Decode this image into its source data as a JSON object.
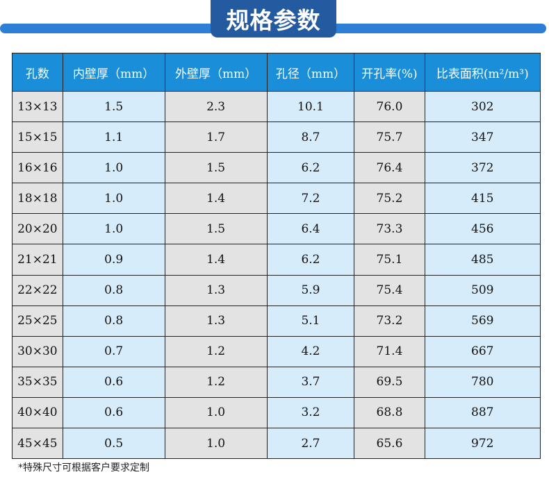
{
  "title": "规格参数",
  "headers": [
    "孔数",
    "内壁厚（mm）",
    "外壁厚（mm）",
    "孔径（mm）",
    "开孔率(%)",
    "比表面积(m²/m³)"
  ],
  "rows": [
    [
      "13×13",
      "1.5",
      "2.3",
      "10.1",
      "76.0",
      "302"
    ],
    [
      "15×15",
      "1.1",
      "1.7",
      "8.7",
      "75.7",
      "347"
    ],
    [
      "16×16",
      "1.0",
      "1.5",
      "6.2",
      "76.4",
      "372"
    ],
    [
      "18×18",
      "1.0",
      "1.4",
      "7.2",
      "75.2",
      "415"
    ],
    [
      "20×20",
      "1.0",
      "1.5",
      "6.4",
      "73.3",
      "456"
    ],
    [
      "21×21",
      "0.9",
      "1.4",
      "6.2",
      "75.1",
      "485"
    ],
    [
      "22×22",
      "0.8",
      "1.3",
      "5.9",
      "75.4",
      "509"
    ],
    [
      "25×25",
      "0.8",
      "1.3",
      "5.1",
      "73.2",
      "569"
    ],
    [
      "30×30",
      "0.7",
      "1.2",
      "4.2",
      "71.4",
      "667"
    ],
    [
      "35×35",
      "0.6",
      "1.2",
      "3.7",
      "69.5",
      "780"
    ],
    [
      "40×40",
      "0.6",
      "1.0",
      "3.2",
      "68.8",
      "887"
    ],
    [
      "45×45",
      "0.5",
      "1.0",
      "2.7",
      "65.6",
      "972"
    ]
  ],
  "note": "*特殊尺寸可根据客户要求定制",
  "colors": {
    "header": "#1a8ed8",
    "badge": "#245aa0",
    "bar": "#2d7fd6"
  }
}
